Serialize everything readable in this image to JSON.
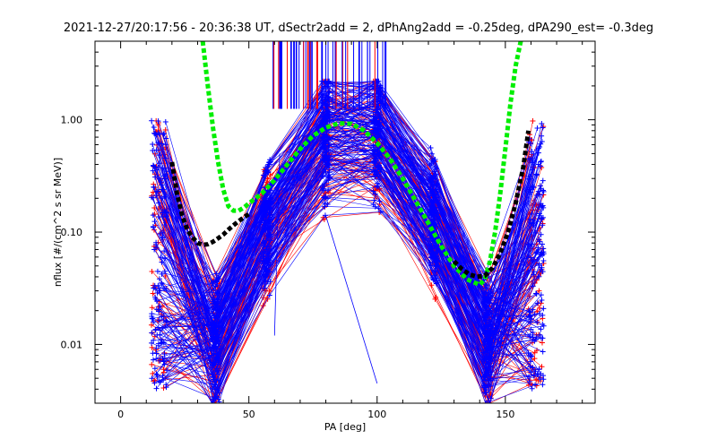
{
  "chart_data": {
    "type": "scatter",
    "title": "2021-12-27/20:17:56 - 20:36:38 UT, dSectr2add = 2, dPhAng2add = -0.25deg, dPA290_est=  -0.3deg",
    "xlabel": "PA [deg]",
    "ylabel": "nflux [#/(cm^2 s sr MeV)]",
    "xlim": [
      -10,
      185
    ],
    "ylim": [
      0.003,
      5.0
    ],
    "yscale": "log",
    "grid": false,
    "x_ticks": [
      0,
      50,
      100,
      150
    ],
    "x_tick_labels": [
      "0",
      "50",
      "100",
      "150"
    ],
    "y_ticks": [
      0.01,
      0.1,
      1.0
    ],
    "y_tick_labels": [
      "0.01",
      "0.10",
      "1.00"
    ],
    "colors": {
      "red_traces": "#ff0000",
      "blue_traces": "#0000ff",
      "green_fit": "#00ee00",
      "black_fit": "#000000"
    },
    "series": [
      {
        "name": "",
        "style": "dashed-thick",
        "color": "#00ee00",
        "x": [
          32,
          34,
          36,
          38,
          40,
          42,
          44,
          46,
          48,
          50,
          55,
          60,
          65,
          70,
          75,
          80,
          85,
          90,
          95,
          100,
          105,
          110,
          115,
          120,
          125,
          130,
          135,
          140,
          142,
          144,
          146,
          148,
          150,
          152,
          154,
          156
        ],
        "y": [
          5.0,
          2.0,
          0.85,
          0.42,
          0.24,
          0.17,
          0.155,
          0.155,
          0.165,
          0.18,
          0.22,
          0.29,
          0.4,
          0.55,
          0.72,
          0.85,
          0.93,
          0.92,
          0.8,
          0.62,
          0.45,
          0.3,
          0.19,
          0.12,
          0.075,
          0.05,
          0.038,
          0.034,
          0.038,
          0.055,
          0.1,
          0.22,
          0.55,
          1.4,
          3.0,
          5.0
        ]
      },
      {
        "name": "",
        "style": "dashed-thick",
        "color": "#000000",
        "x": [
          20,
          22,
          24,
          26,
          28,
          30,
          32,
          34,
          36,
          38,
          40,
          42,
          44,
          46,
          48,
          50,
          130,
          133,
          136,
          139,
          142,
          145,
          148,
          151,
          154,
          157,
          159
        ],
        "y": [
          0.42,
          0.22,
          0.14,
          0.105,
          0.09,
          0.08,
          0.077,
          0.078,
          0.082,
          0.088,
          0.095,
          0.105,
          0.115,
          0.125,
          0.135,
          0.145,
          0.055,
          0.047,
          0.042,
          0.04,
          0.041,
          0.048,
          0.065,
          0.1,
          0.18,
          0.38,
          0.8
        ]
      }
    ]
  }
}
